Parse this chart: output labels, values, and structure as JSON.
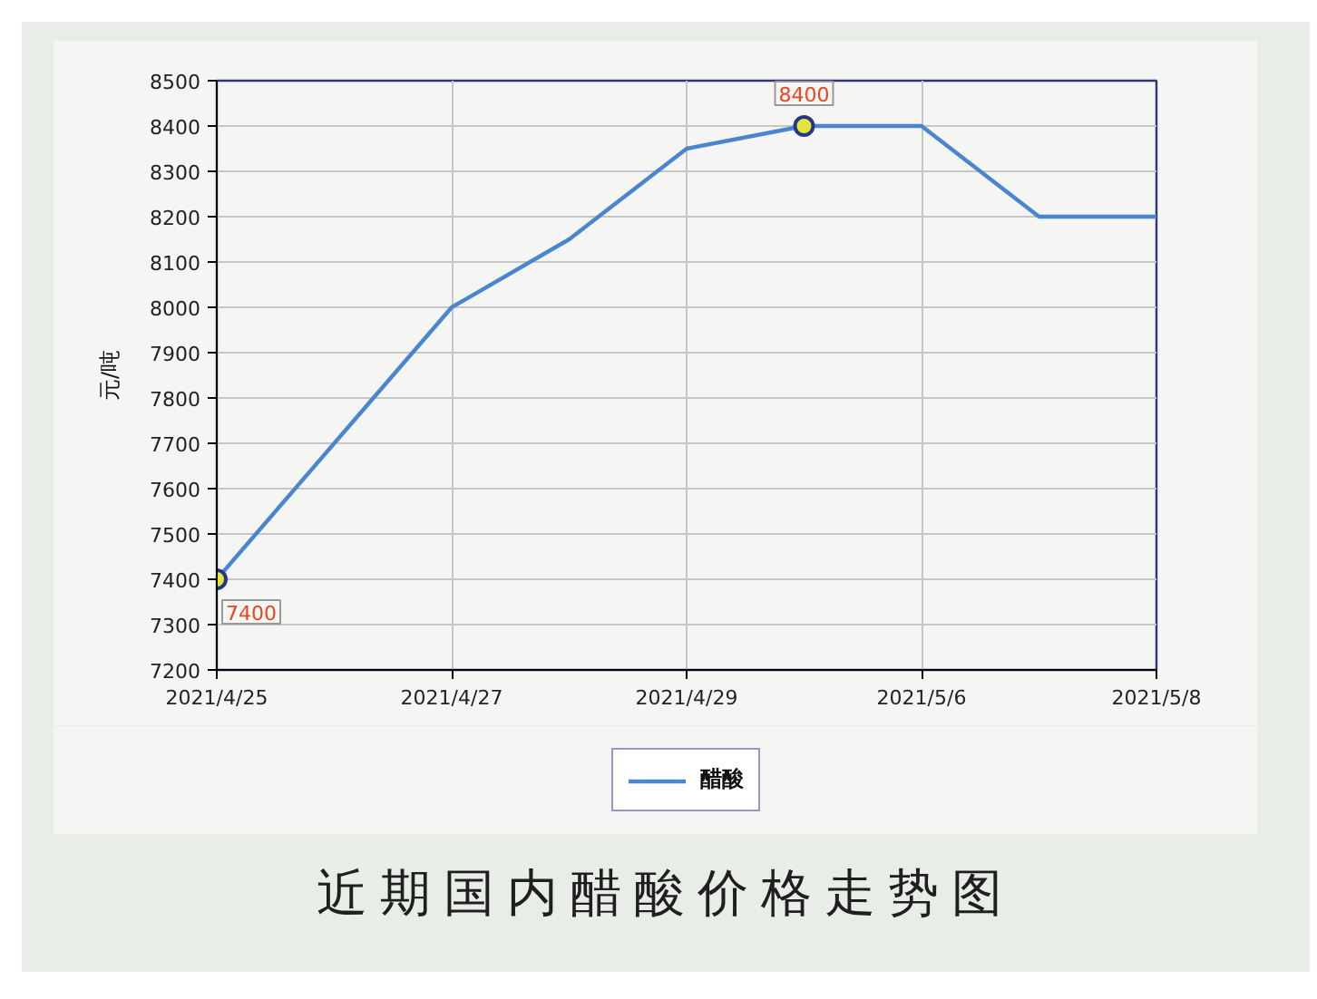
{
  "chart_data": {
    "type": "line",
    "title": "近期国内醋酸价格走势图",
    "ylabel": "元/吨",
    "categories": [
      "2021/4/25",
      null,
      "2021/4/27",
      null,
      "2021/4/29",
      null,
      "2021/5/6",
      null,
      "2021/5/8"
    ],
    "series": [
      {
        "name": "醋酸",
        "color": "#4a86d0",
        "values": [
          7400,
          7700,
          8000,
          8150,
          8350,
          8400,
          8400,
          8200,
          8200
        ],
        "value_labels": [
          "7400",
          null,
          null,
          null,
          null,
          "8400",
          null,
          null,
          null
        ]
      }
    ],
    "ylim": [
      7200,
      8500
    ],
    "yticks": [
      7200,
      7300,
      7400,
      7500,
      7600,
      7700,
      7800,
      7900,
      8000,
      8100,
      8200,
      8300,
      8400,
      8500
    ],
    "grid": true,
    "legend": "bottom"
  }
}
